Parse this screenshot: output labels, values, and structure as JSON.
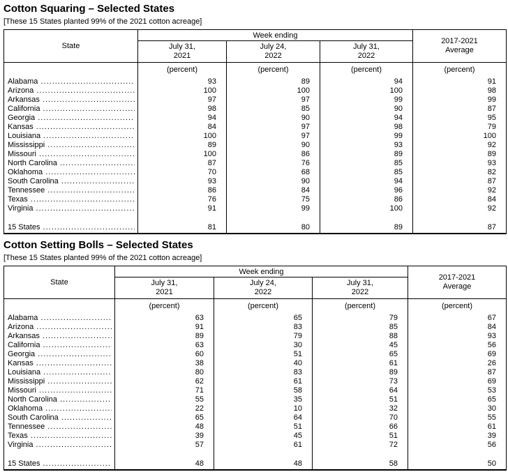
{
  "page": {
    "background_color": "#ffffff",
    "text_color": "#000000"
  },
  "sections": [
    {
      "title": "Cotton Squaring – Selected States",
      "subtitle": "[These 15 States planted 99% of the 2021 cotton acreage]",
      "table": {
        "state_col_header": "State",
        "group_header": "Week ending",
        "week_columns": [
          [
            "July 31,",
            "2021"
          ],
          [
            "July 24,",
            "2022"
          ],
          [
            "July 31,",
            "2022"
          ]
        ],
        "avg_line1": "2017-2021",
        "avg_line2": "Average",
        "unit_label": "(percent)",
        "rows": [
          {
            "state": "Alabama",
            "values": [
              93,
              89,
              94,
              91
            ]
          },
          {
            "state": "Arizona",
            "values": [
              100,
              100,
              100,
              98
            ]
          },
          {
            "state": "Arkansas",
            "values": [
              97,
              97,
              99,
              99
            ]
          },
          {
            "state": "California",
            "values": [
              98,
              85,
              90,
              87
            ]
          },
          {
            "state": "Georgia",
            "values": [
              94,
              90,
              94,
              95
            ]
          },
          {
            "state": "Kansas",
            "values": [
              84,
              97,
              98,
              79
            ]
          },
          {
            "state": "Louisiana",
            "values": [
              100,
              97,
              99,
              100
            ]
          },
          {
            "state": "Mississippi",
            "values": [
              89,
              90,
              93,
              92
            ]
          },
          {
            "state": "Missouri",
            "values": [
              100,
              86,
              89,
              89
            ]
          },
          {
            "state": "North Carolina",
            "values": [
              87,
              76,
              85,
              93
            ]
          },
          {
            "state": "Oklahoma",
            "values": [
              70,
              68,
              85,
              82
            ]
          },
          {
            "state": "South Carolina",
            "values": [
              93,
              90,
              94,
              87
            ]
          },
          {
            "state": "Tennessee",
            "values": [
              86,
              84,
              96,
              92
            ]
          },
          {
            "state": "Texas",
            "values": [
              76,
              75,
              86,
              84
            ]
          },
          {
            "state": "Virginia",
            "values": [
              91,
              99,
              100,
              92
            ]
          }
        ],
        "total_row": {
          "state": "15 States",
          "values": [
            81,
            80,
            89,
            87
          ]
        }
      }
    },
    {
      "title": "Cotton Setting Bolls – Selected States",
      "subtitle": "[These 15 States planted 99% of the 2021 cotton acreage]",
      "table": {
        "state_col_header": "State",
        "group_header": "Week ending",
        "week_columns": [
          [
            "July 31,",
            "2021"
          ],
          [
            "July 24,",
            "2022"
          ],
          [
            "July 31,",
            "2022"
          ]
        ],
        "avg_line1": "2017-2021",
        "avg_line2": "Average",
        "unit_label": "(percent)",
        "rows": [
          {
            "state": "Alabama",
            "values": [
              63,
              65,
              79,
              67
            ]
          },
          {
            "state": "Arizona",
            "values": [
              91,
              83,
              85,
              84
            ]
          },
          {
            "state": "Arkansas",
            "values": [
              89,
              79,
              88,
              93
            ]
          },
          {
            "state": "California",
            "values": [
              63,
              30,
              45,
              56
            ]
          },
          {
            "state": "Georgia",
            "values": [
              60,
              51,
              65,
              69
            ]
          },
          {
            "state": "Kansas",
            "values": [
              38,
              40,
              61,
              26
            ]
          },
          {
            "state": "Louisiana",
            "values": [
              80,
              83,
              89,
              87
            ]
          },
          {
            "state": "Mississippi",
            "values": [
              62,
              61,
              73,
              69
            ]
          },
          {
            "state": "Missouri",
            "values": [
              71,
              58,
              64,
              53
            ]
          },
          {
            "state": "North Carolina",
            "values": [
              55,
              35,
              51,
              65
            ]
          },
          {
            "state": "Oklahoma",
            "values": [
              22,
              10,
              32,
              30
            ]
          },
          {
            "state": "South Carolina",
            "values": [
              65,
              64,
              70,
              55
            ]
          },
          {
            "state": "Tennessee",
            "values": [
              48,
              51,
              66,
              61
            ]
          },
          {
            "state": "Texas",
            "values": [
              39,
              45,
              51,
              39
            ]
          },
          {
            "state": "Virginia",
            "values": [
              57,
              61,
              72,
              56
            ]
          }
        ],
        "total_row": {
          "state": "15 States",
          "values": [
            48,
            48,
            58,
            50
          ]
        }
      }
    }
  ]
}
